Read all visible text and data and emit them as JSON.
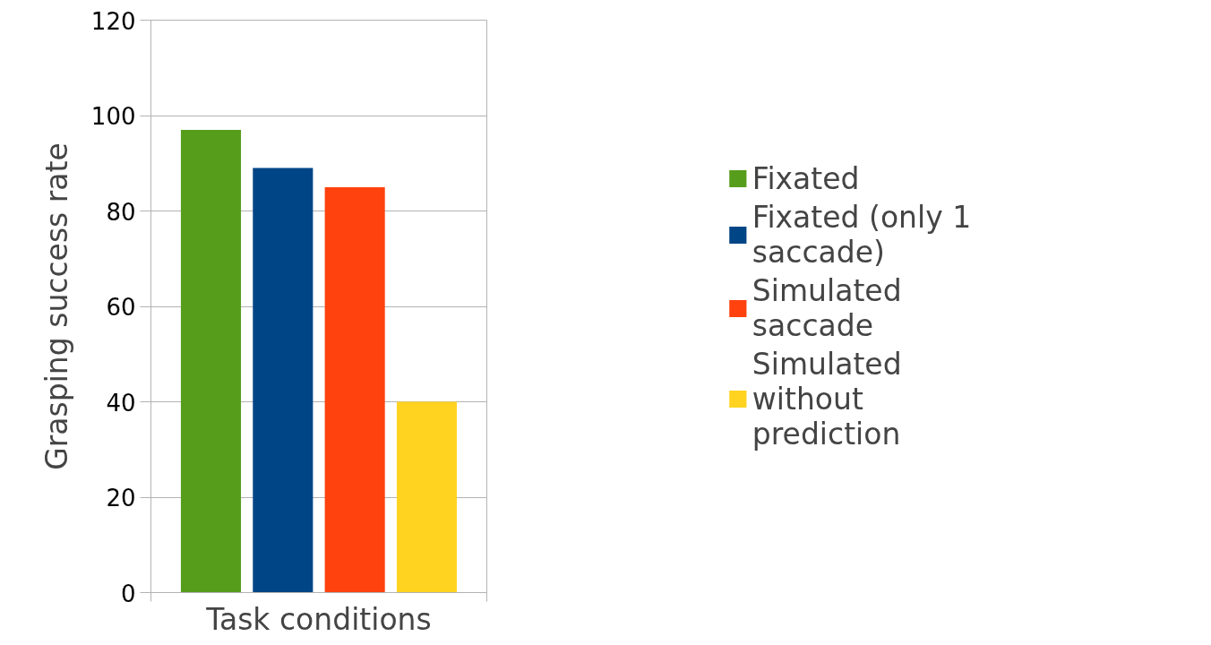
{
  "chart_data": {
    "type": "bar",
    "xlabel": "Task conditions",
    "ylabel": "Grasping success rate",
    "categories": [
      null
    ],
    "series": [
      {
        "name": "Fixated",
        "color": "#579d1c",
        "values": [
          97
        ]
      },
      {
        "name": "Fixated (only 1 saccade)",
        "color": "#004586",
        "values": [
          89
        ]
      },
      {
        "name": "Simulated saccade",
        "color": "#ff420e",
        "values": [
          85
        ]
      },
      {
        "name": "Simulated without prediction",
        "color": "#ffd320",
        "values": [
          40
        ]
      }
    ],
    "ylim": [
      0,
      120
    ],
    "yticks": [
      0,
      20,
      40,
      60,
      80,
      100,
      120
    ],
    "grid": "y",
    "legend": "right",
    "tick_labels": "y"
  }
}
